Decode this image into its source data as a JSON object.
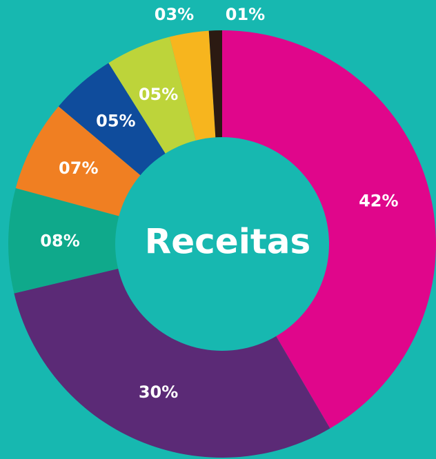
{
  "chart_data": {
    "type": "donut",
    "title": "Receitas",
    "values": [
      42,
      30,
      8,
      7,
      5,
      5,
      3,
      1
    ],
    "value_labels": [
      "42%",
      "30%",
      "08%",
      "07%",
      "05%",
      "05%",
      "03%",
      "01%"
    ],
    "colors": [
      "#e0068b",
      "#5b2a76",
      "#0fa98b",
      "#f07f22",
      "#0f4c9c",
      "#bdd43a",
      "#f7b51e",
      "#2b1a12"
    ]
  }
}
